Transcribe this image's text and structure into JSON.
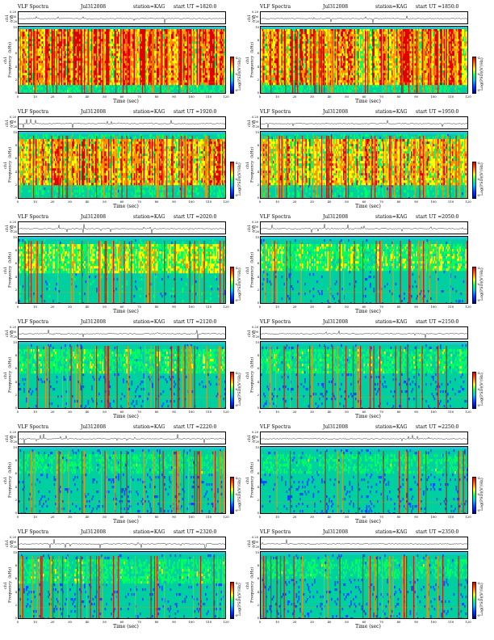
{
  "document": {
    "title": "VLF Spectra",
    "date": "Jul312008",
    "station": "station=KAG",
    "ut_prefix": "start  UT ="
  },
  "labels": {
    "ts_axis": "ch1 (V)",
    "y_axis": "ch1\nFrequency  (kHz)",
    "x_axis": "Time  (sec)",
    "colorbar": "Log(PSD)(V²/Hz)"
  },
  "ts_ticks": [
    "0.20",
    "0.00",
    "-0.20"
  ],
  "y_ticks": [
    "10",
    "8",
    "6",
    "4",
    "2",
    "0"
  ],
  "x_ticks": [
    "0",
    "10",
    "20",
    "30",
    "40",
    "50",
    "60",
    "70",
    "80",
    "90",
    "100",
    "110",
    "120"
  ],
  "cb_ticks": [
    "-4",
    "-6",
    "-8"
  ],
  "colors": {
    "quiet": "#20c8d0",
    "background": "#00d0a0",
    "band": "#00ff60",
    "yellow": "#ffff00",
    "orange": "#ff9000",
    "red": "#e00000",
    "blue": "#0050ff",
    "navy": "#000090"
  },
  "chart_data": {
    "type": "heatmap",
    "xlabel": "Time  (sec)",
    "ylabel": "Frequency  (kHz)",
    "xlim": [
      0,
      120
    ],
    "ylim": [
      0,
      10
    ],
    "colorbar_label": "Log(PSD)(V²/Hz)",
    "panels": [
      {
        "start_ut": "1820:0",
        "activity": 0.95,
        "band_low_khz": 1.5,
        "band_high_khz": 9.5
      },
      {
        "start_ut": "1850:0",
        "activity": 0.92,
        "band_low_khz": 1.5,
        "band_high_khz": 9.5
      },
      {
        "start_ut": "1920:0",
        "activity": 0.85,
        "band_low_khz": 2.0,
        "band_high_khz": 9.0
      },
      {
        "start_ut": "1950:0",
        "activity": 0.8,
        "band_low_khz": 2.0,
        "band_high_khz": 9.0
      },
      {
        "start_ut": "2020:0",
        "activity": 0.55,
        "band_low_khz": 4.5,
        "band_high_khz": 9.0
      },
      {
        "start_ut": "2050:0",
        "activity": 0.45,
        "band_low_khz": 5.0,
        "band_high_khz": 9.0
      },
      {
        "start_ut": "2120:0",
        "activity": 0.38,
        "band_low_khz": 5.5,
        "band_high_khz": 9.0
      },
      {
        "start_ut": "2150:0",
        "activity": 0.35,
        "band_low_khz": 5.5,
        "band_high_khz": 9.0
      },
      {
        "start_ut": "2220:0",
        "activity": 0.3,
        "band_low_khz": 6.0,
        "band_high_khz": 9.0
      },
      {
        "start_ut": "2250:0",
        "activity": 0.3,
        "band_low_khz": 6.0,
        "band_high_khz": 9.0
      },
      {
        "start_ut": "2320:0",
        "activity": 0.35,
        "band_low_khz": 5.5,
        "band_high_khz": 9.0
      },
      {
        "start_ut": "2350:0",
        "activity": 0.3,
        "band_low_khz": 6.0,
        "band_high_khz": 9.0
      }
    ]
  }
}
